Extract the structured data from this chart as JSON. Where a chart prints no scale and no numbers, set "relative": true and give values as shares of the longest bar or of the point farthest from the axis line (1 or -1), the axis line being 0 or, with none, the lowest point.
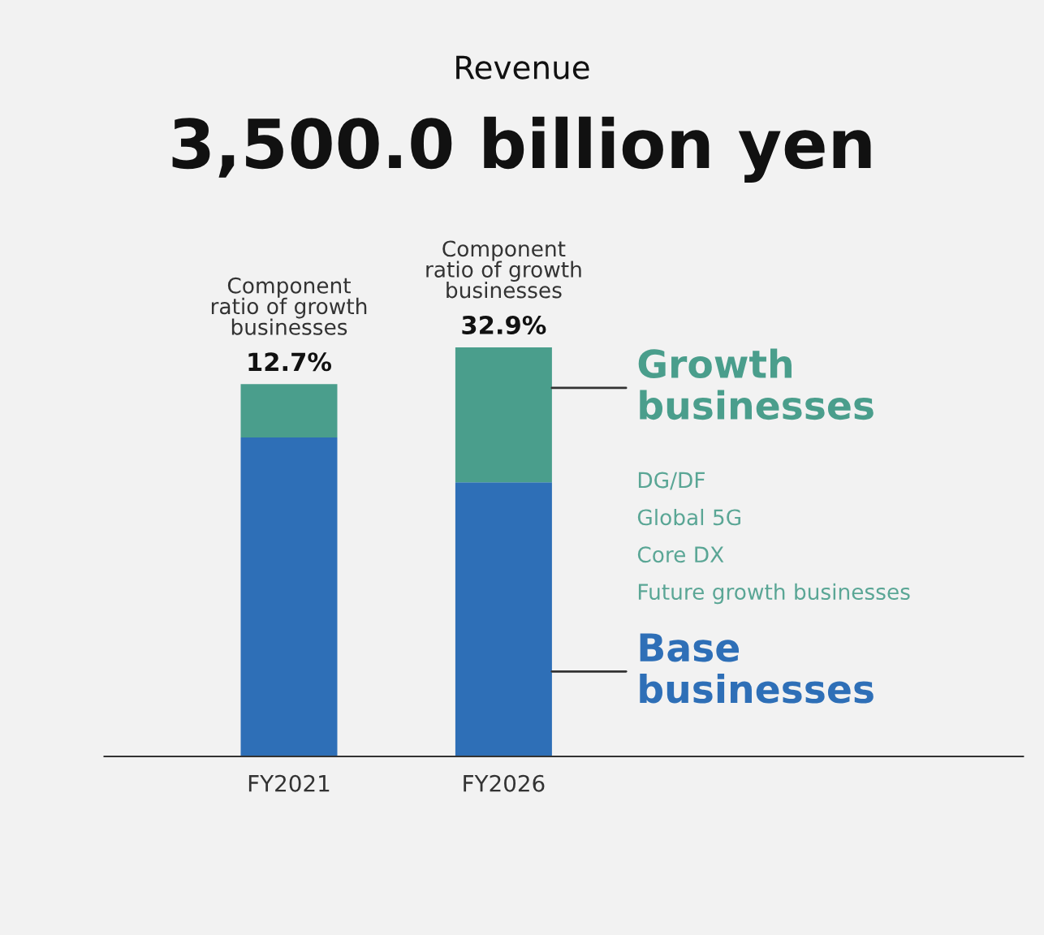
{
  "chart_data": {
    "type": "bar",
    "title": "Revenue",
    "subtitle": "3,500.0 billion yen",
    "categories": [
      "FY2021",
      "FY2026"
    ],
    "stacked": true,
    "relative": true,
    "legend": false,
    "grid": false,
    "series": [
      {
        "name": "Base businesses",
        "color": "#2e6fb7",
        "values": [
          0.78,
          0.67
        ]
      },
      {
        "name": "Growth businesses",
        "color": "#4a9e8c",
        "values": [
          0.13,
          0.33
        ]
      }
    ],
    "annotations": [
      {
        "text": "Component\nratio of growth\nbusinesses",
        "x": "FY2021",
        "y": 0.91
      },
      {
        "text": "12.7%",
        "x": "FY2021",
        "y": 0.91
      },
      {
        "text": "Component\nratio of growth\nbusinesses",
        "x": "FY2026",
        "y": 1.0
      },
      {
        "text": "32.9%",
        "x": "FY2026",
        "y": 1.0
      },
      "DG/DF",
      "Global 5G",
      "Core DX",
      "Future growth businesses"
    ]
  }
}
